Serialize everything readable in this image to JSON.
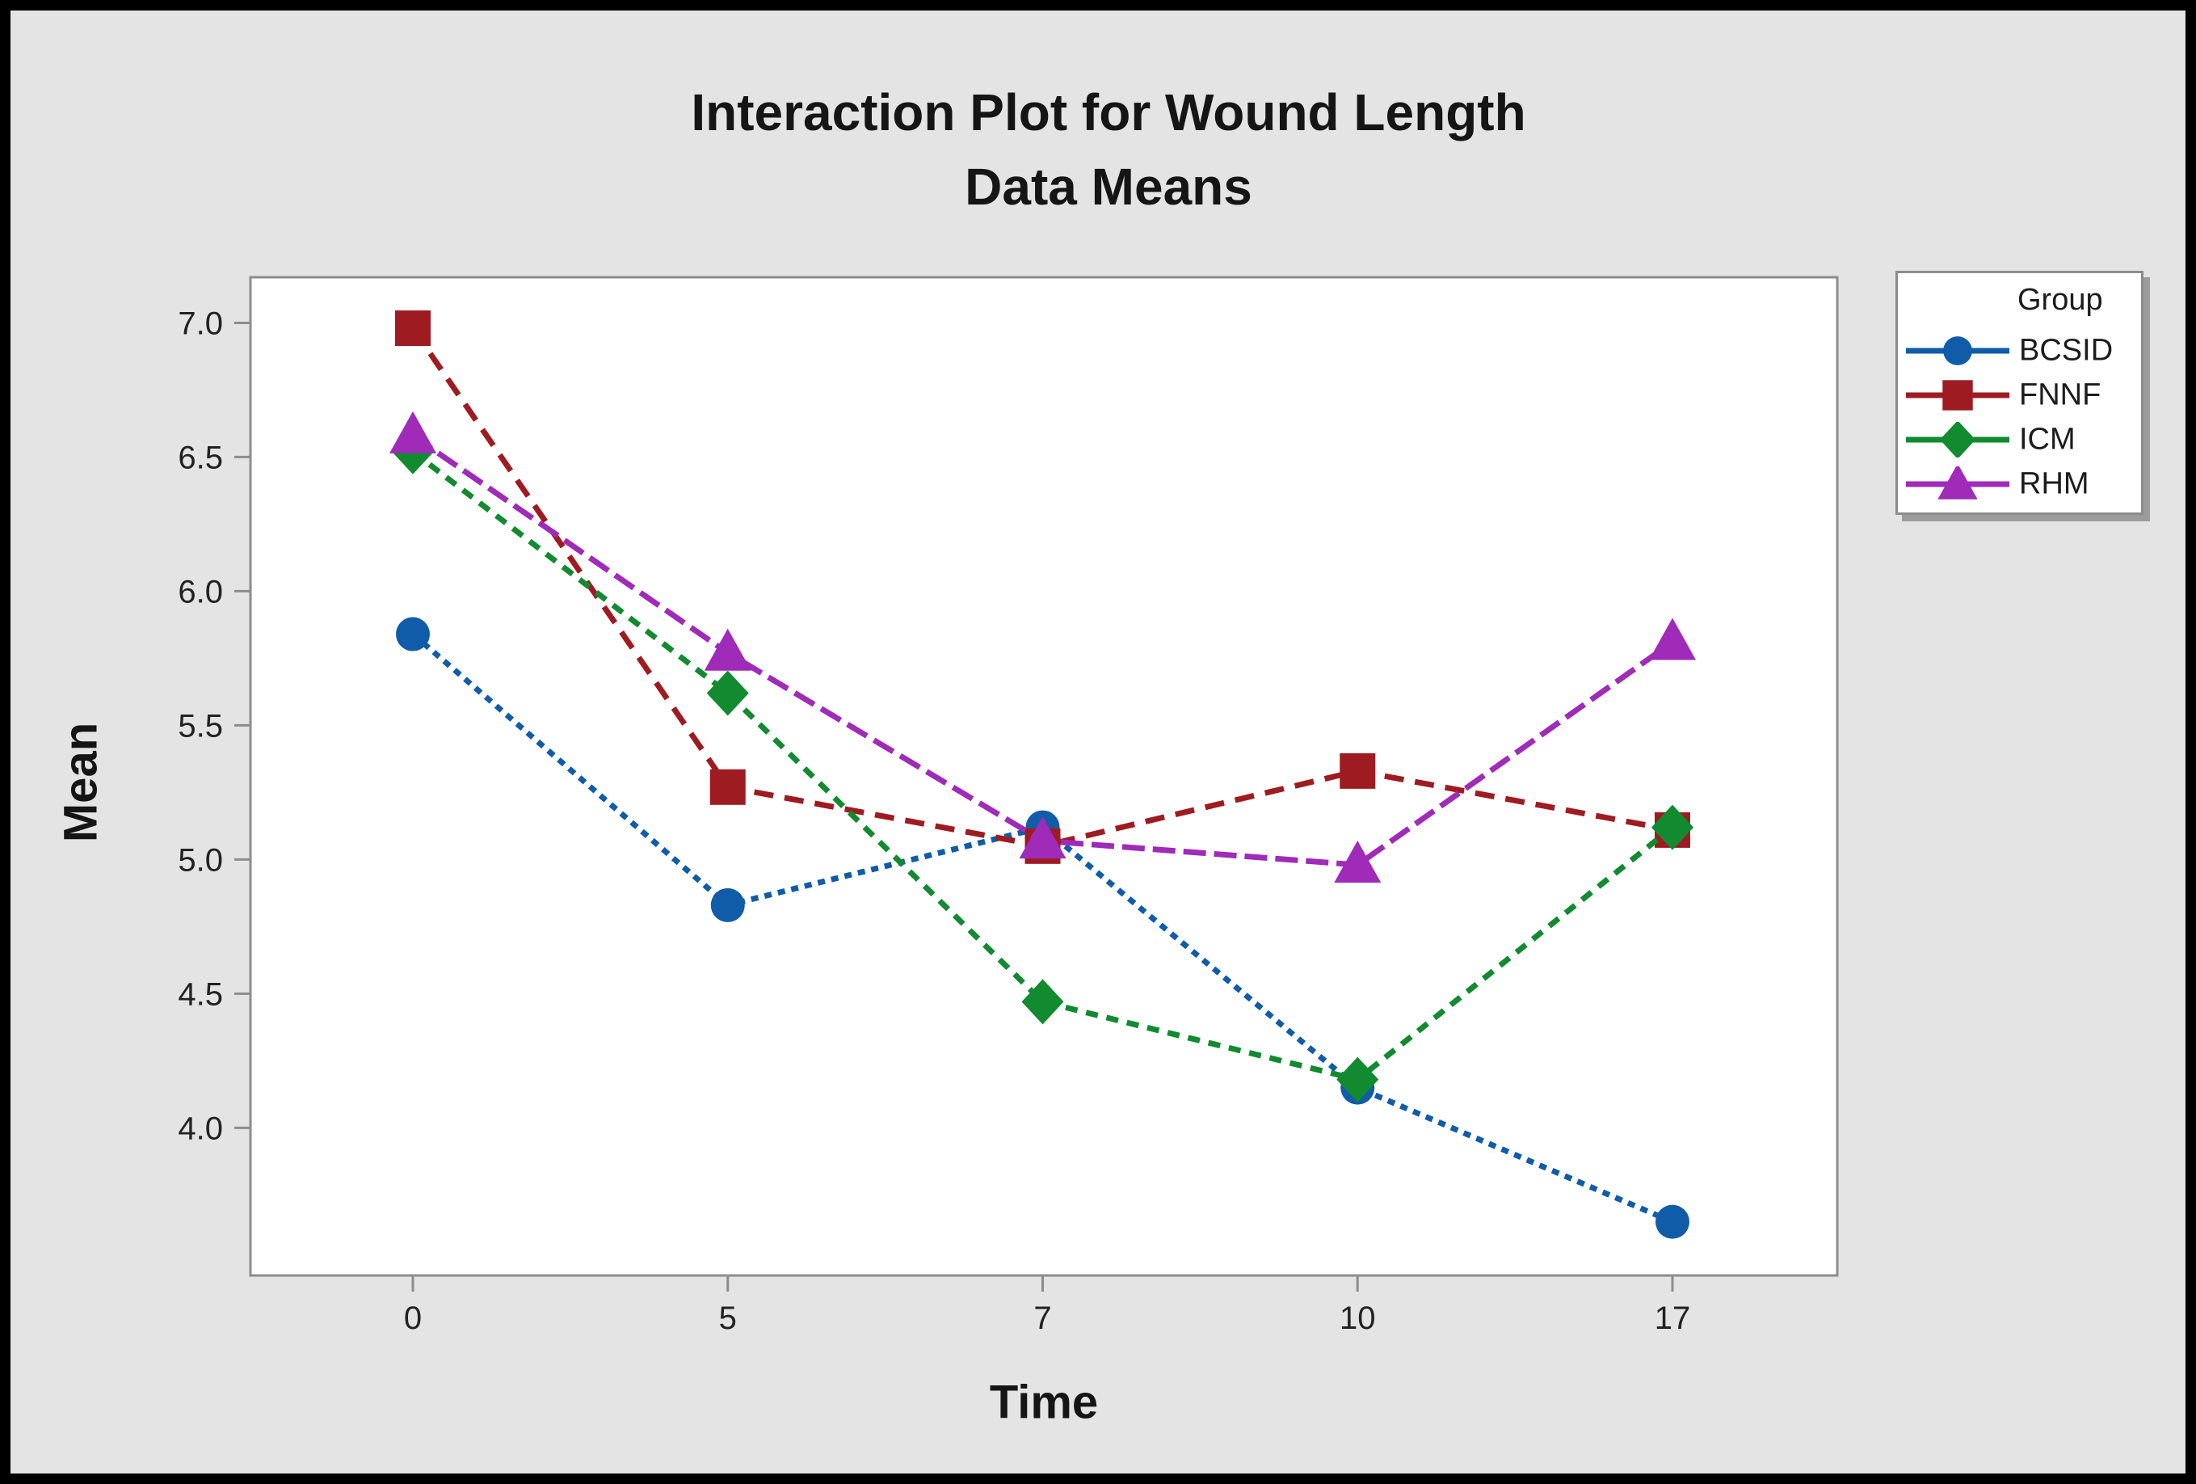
{
  "window": {
    "background_color": "#e4e4e4",
    "frame_color": "#000000",
    "plot_background_color": "#ffffff",
    "axis_color": "#8c8c8c"
  },
  "title": {
    "line1": "Interaction Plot for Wound Length",
    "line2": "Data Means"
  },
  "axes": {
    "y_label": "Mean",
    "x_label": "Time"
  },
  "legend": {
    "title": "Group"
  },
  "chart_data": {
    "type": "line",
    "title": "Interaction Plot for Wound Length",
    "subtitle": "Data Means",
    "xlabel": "Time",
    "ylabel": "Mean",
    "categories": [
      "0",
      "5",
      "7",
      "10",
      "17"
    ],
    "y_ticks": [
      "7.0",
      "6.5",
      "6.0",
      "5.5",
      "5.0",
      "4.5",
      "4.0"
    ],
    "ylim": [
      3.45,
      7.17
    ],
    "grid": false,
    "legend_position": "right",
    "series": [
      {
        "name": "BCSID",
        "color": "#105ca8",
        "marker": "circle",
        "line_style": "dotted",
        "dash": "9,8",
        "values": [
          5.84,
          4.83,
          5.12,
          4.15,
          3.65
        ]
      },
      {
        "name": "FNNF",
        "color": "#9e1c21",
        "marker": "square",
        "line_style": "dashed",
        "dash": "24,14",
        "values": [
          6.98,
          5.27,
          5.05,
          5.33,
          5.11
        ]
      },
      {
        "name": "ICM",
        "color": "#128a30",
        "marker": "diamond",
        "line_style": "dashed",
        "dash": "15,11",
        "values": [
          6.52,
          5.62,
          4.47,
          4.18,
          5.12
        ]
      },
      {
        "name": "RHM",
        "color": "#9f2bb8",
        "marker": "triangle",
        "line_style": "long-dash",
        "dash": "28,10",
        "values": [
          6.58,
          5.77,
          5.07,
          4.98,
          5.81
        ]
      }
    ]
  }
}
